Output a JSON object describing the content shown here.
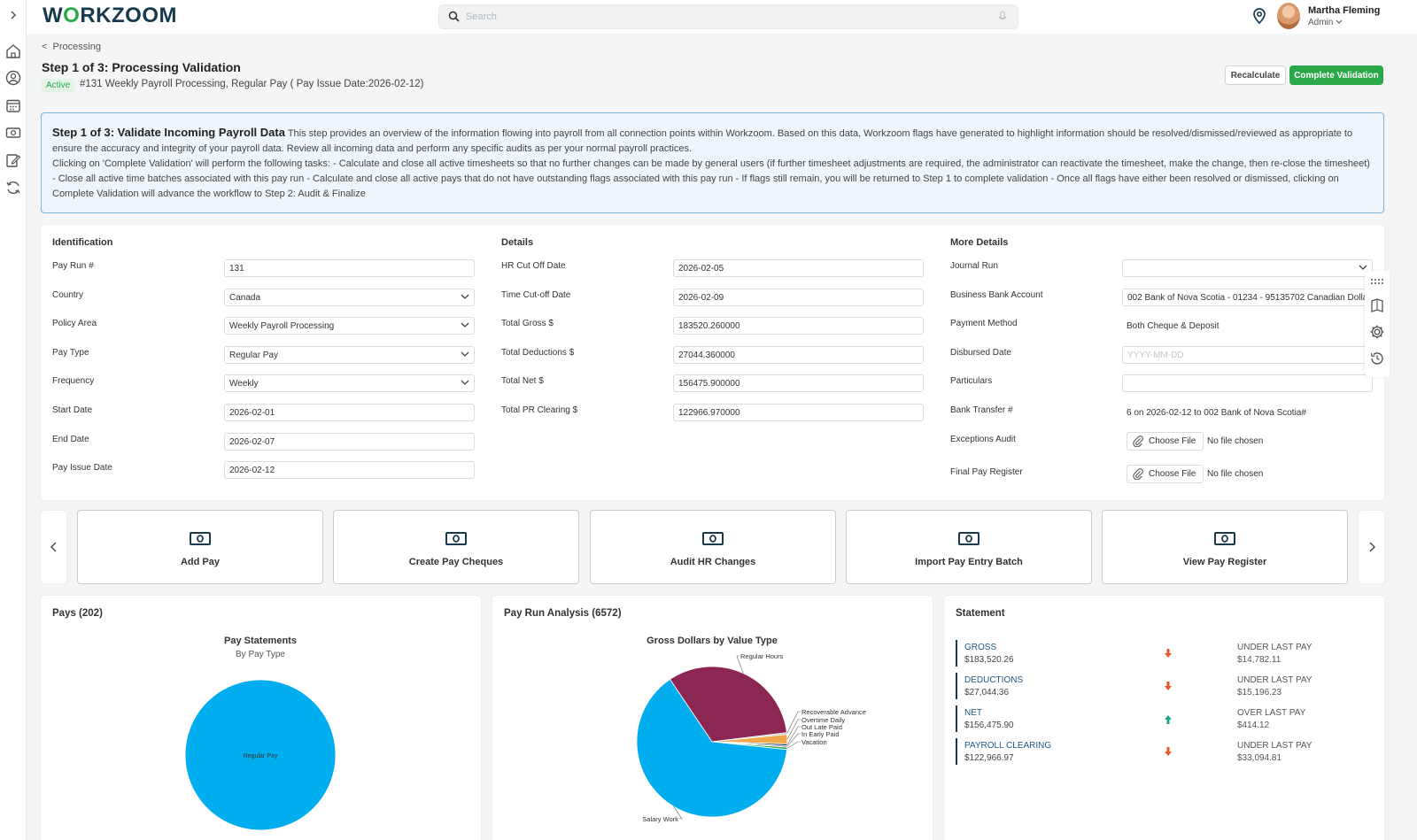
{
  "app": {
    "logo_left": "W",
    "logo_o": "O",
    "logo_right": "RKZOOM"
  },
  "search": {
    "placeholder": "Search"
  },
  "user": {
    "name": "Martha Fleming",
    "role": "Admin"
  },
  "header": {
    "breadcrumb": "Processing",
    "title": "Step 1 of 3: Processing Validation",
    "status": "Active",
    "subtitle": "#131 Weekly Payroll Processing, Regular Pay ( Pay Issue Date:2026-02-12)",
    "recalculate_label": "Recalculate",
    "complete_label": "Complete Validation"
  },
  "info": {
    "heading": "Step 1 of 3: Validate Incoming Payroll Data",
    "para1": " This step provides an overview of the information flowing into payroll from all connection points within Workzoom. Based on this data, Workzoom flags have generated to highlight information should be resolved/dismissed/reviewed as appropriate to ensure the accuracy and integrity of your payroll data. Review all incoming data and perform any specific audits as per your normal payroll practices.",
    "para2": "Clicking on 'Complete Validation' will perform the following tasks: - Calculate and close all active timesheets so that no further changes can be made by general users (if further timesheet adjustments are required, the administrator can reactivate the timesheet, make the change, then re-close the timesheet) - Close all active time batches associated with this pay run - Calculate and close all active pays that do not have outstanding flags associated with this pay run - If flags still remain, you will be returned to Step 1 to complete validation - Once all flags have either been resolved or dismissed, clicking on Complete Validation will advance the workflow to Step 2: Audit & Finalize"
  },
  "identification": {
    "heading": "Identification",
    "fields": [
      {
        "label": "Pay Run #",
        "value": "131"
      },
      {
        "label": "Country",
        "value": "Canada"
      },
      {
        "label": "Policy Area",
        "value": "Weekly Payroll Processing"
      },
      {
        "label": "Pay Type",
        "value": "Regular Pay"
      },
      {
        "label": "Frequency",
        "value": "Weekly"
      },
      {
        "label": "Start Date",
        "value": "2026-02-01"
      },
      {
        "label": "End Date",
        "value": "2026-02-07"
      },
      {
        "label": "Pay Issue Date",
        "value": "2026-02-12"
      }
    ]
  },
  "details": {
    "heading": "Details",
    "fields": [
      {
        "label": "HR Cut Off Date",
        "value": "2026-02-05"
      },
      {
        "label": "Time Cut-off Date",
        "value": "2026-02-09"
      },
      {
        "label": "Total Gross $",
        "value": "183520.260000"
      },
      {
        "label": "Total Deductions $",
        "value": "27044.360000"
      },
      {
        "label": "Total Net $",
        "value": "156475.900000"
      },
      {
        "label": "Total PR Clearing $",
        "value": "122966.970000"
      }
    ]
  },
  "more_details": {
    "heading": "More Details",
    "journal_run": {
      "label": "Journal Run",
      "value": ""
    },
    "bank_account": {
      "label": "Business Bank Account",
      "value": "002 Bank of Nova Scotia - 01234 - 95135702 Canadian Dolla"
    },
    "payment_method": {
      "label": "Payment Method",
      "value": "Both Cheque & Deposit"
    },
    "disbursed_date": {
      "label": "Disbursed Date",
      "placeholder": "YYYY-MM-DD"
    },
    "particulars": {
      "label": "Particulars",
      "value": ""
    },
    "bank_transfer": {
      "label": "Bank Transfer #",
      "value": "6 on 2026-02-12 to 002 Bank of Nova Scotia#"
    },
    "exceptions_audit": {
      "label": "Exceptions Audit",
      "button": "Choose File",
      "status": "No file chosen"
    },
    "final_pay_register": {
      "label": "Final Pay Register",
      "button": "Choose File",
      "status": "No file chosen"
    }
  },
  "actions": [
    {
      "label": "Add Pay"
    },
    {
      "label": "Create Pay Cheques"
    },
    {
      "label": "Audit HR Changes"
    },
    {
      "label": "Import Pay Entry Batch"
    },
    {
      "label": "View Pay Register"
    }
  ],
  "pays_card": {
    "title": "Pays (202)",
    "chart_title": "Pay Statements",
    "chart_subtitle": "By Pay Type"
  },
  "analysis_card": {
    "title": "Pay Run Analysis (6572)",
    "chart_title": "Gross Dollars by Value Type"
  },
  "statement": {
    "title": "Statement",
    "rows": [
      {
        "label": "GROSS",
        "value": "$183,520.26",
        "direction": "down",
        "compare": "UNDER LAST PAY",
        "delta": "$14,782.11"
      },
      {
        "label": "DEDUCTIONS",
        "value": "$27,044.36",
        "direction": "down",
        "compare": "UNDER LAST PAY",
        "delta": "$15,196.23"
      },
      {
        "label": "NET",
        "value": "$156,475.90",
        "direction": "up",
        "compare": "OVER LAST PAY",
        "delta": "$414.12"
      },
      {
        "label": "PAYROLL CLEARING",
        "value": "$122,966.97",
        "direction": "down",
        "compare": "UNDER LAST PAY",
        "delta": "$33,094.81"
      }
    ]
  },
  "chart_data": [
    {
      "type": "pie",
      "title": "Pay Statements",
      "subtitle": "By Pay Type",
      "labels": [
        "Regular Pay"
      ],
      "values": [
        100
      ],
      "colors": [
        "#00aeef"
      ]
    },
    {
      "type": "pie",
      "title": "Gross Dollars by Value Type",
      "labels": [
        "Regular Hours",
        "Recoverable Advance",
        "Overtime Daily",
        "Out Late Paid",
        "In Early Paid",
        "Vacation",
        "Salary Work"
      ],
      "values": [
        32.5,
        0.4,
        2.0,
        0.4,
        0.3,
        0.5,
        63.9
      ],
      "colors": [
        "#8b2752",
        "#c9c9c9",
        "#f2a74b",
        "#173b4d",
        "#6b4aa0",
        "#2ba84a",
        "#00aeef"
      ]
    }
  ],
  "colors": {
    "brand": "#173b4d",
    "accent_green": "#2ba84a",
    "down_arrow": "#e8572a",
    "up_arrow": "#1aa58f"
  }
}
